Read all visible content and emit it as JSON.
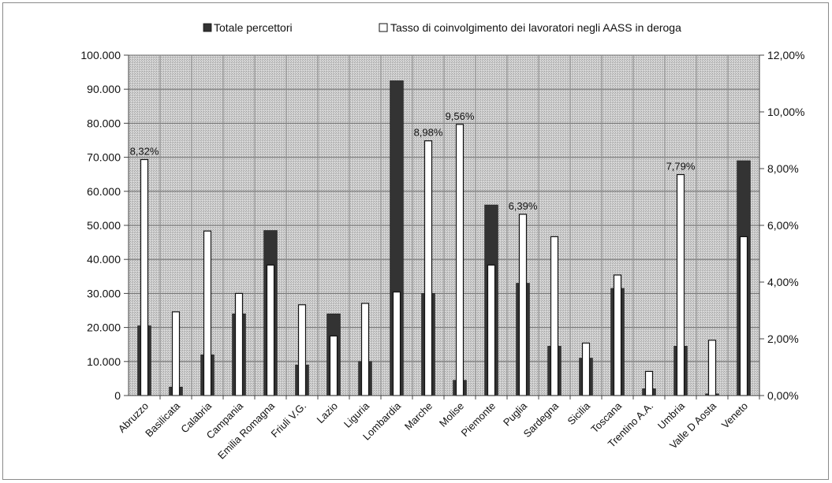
{
  "chart_data": {
    "type": "bar",
    "categories": [
      "Abruzzo",
      "Basilicata",
      "Calabria",
      "Campania",
      "Emilia Romagna",
      "Friuli V.G.",
      "Lazio",
      "Liguria",
      "Lombardia",
      "Marche",
      "Molise",
      "Piemonte",
      "Puglia",
      "Sardegna",
      "Sicilia",
      "Toscana",
      "Trentino A.A.",
      "Umbria",
      "Valle D Aosta",
      "Veneto"
    ],
    "series": [
      {
        "name": "Totale percettori",
        "axis": "left",
        "color": "#333333",
        "values": [
          20500,
          2500,
          12000,
          24000,
          48500,
          9000,
          24000,
          10000,
          92500,
          30000,
          4500,
          56000,
          33000,
          14500,
          11000,
          31500,
          2000,
          14500,
          500,
          69000
        ]
      },
      {
        "name": "Tasso di coinvolgimento dei lavoratori negli AASS in deroga",
        "axis": "right",
        "color": "#ffffff",
        "values": [
          8.32,
          2.95,
          5.8,
          3.6,
          4.6,
          3.2,
          2.1,
          3.25,
          3.65,
          8.98,
          9.56,
          4.6,
          6.39,
          5.6,
          1.85,
          4.25,
          0.85,
          7.79,
          1.95,
          5.6
        ]
      }
    ],
    "data_labels": [
      {
        "index": 0,
        "text": "8,32%"
      },
      {
        "index": 9,
        "text": "8,98%"
      },
      {
        "index": 10,
        "text": "9,56%"
      },
      {
        "index": 12,
        "text": "6,39%"
      },
      {
        "index": 17,
        "text": "7,79%"
      }
    ],
    "y_left": {
      "min": 0,
      "max": 100000,
      "ticks": [
        "0",
        "10.000",
        "20.000",
        "30.000",
        "40.000",
        "50.000",
        "60.000",
        "70.000",
        "80.000",
        "90.000",
        "100.000"
      ]
    },
    "y_right": {
      "min": 0,
      "max": 12,
      "ticks": [
        "0,00%",
        "2,00%",
        "4,00%",
        "6,00%",
        "8,00%",
        "10,00%",
        "12,00%"
      ]
    },
    "legend_position": "top",
    "grid": true
  }
}
